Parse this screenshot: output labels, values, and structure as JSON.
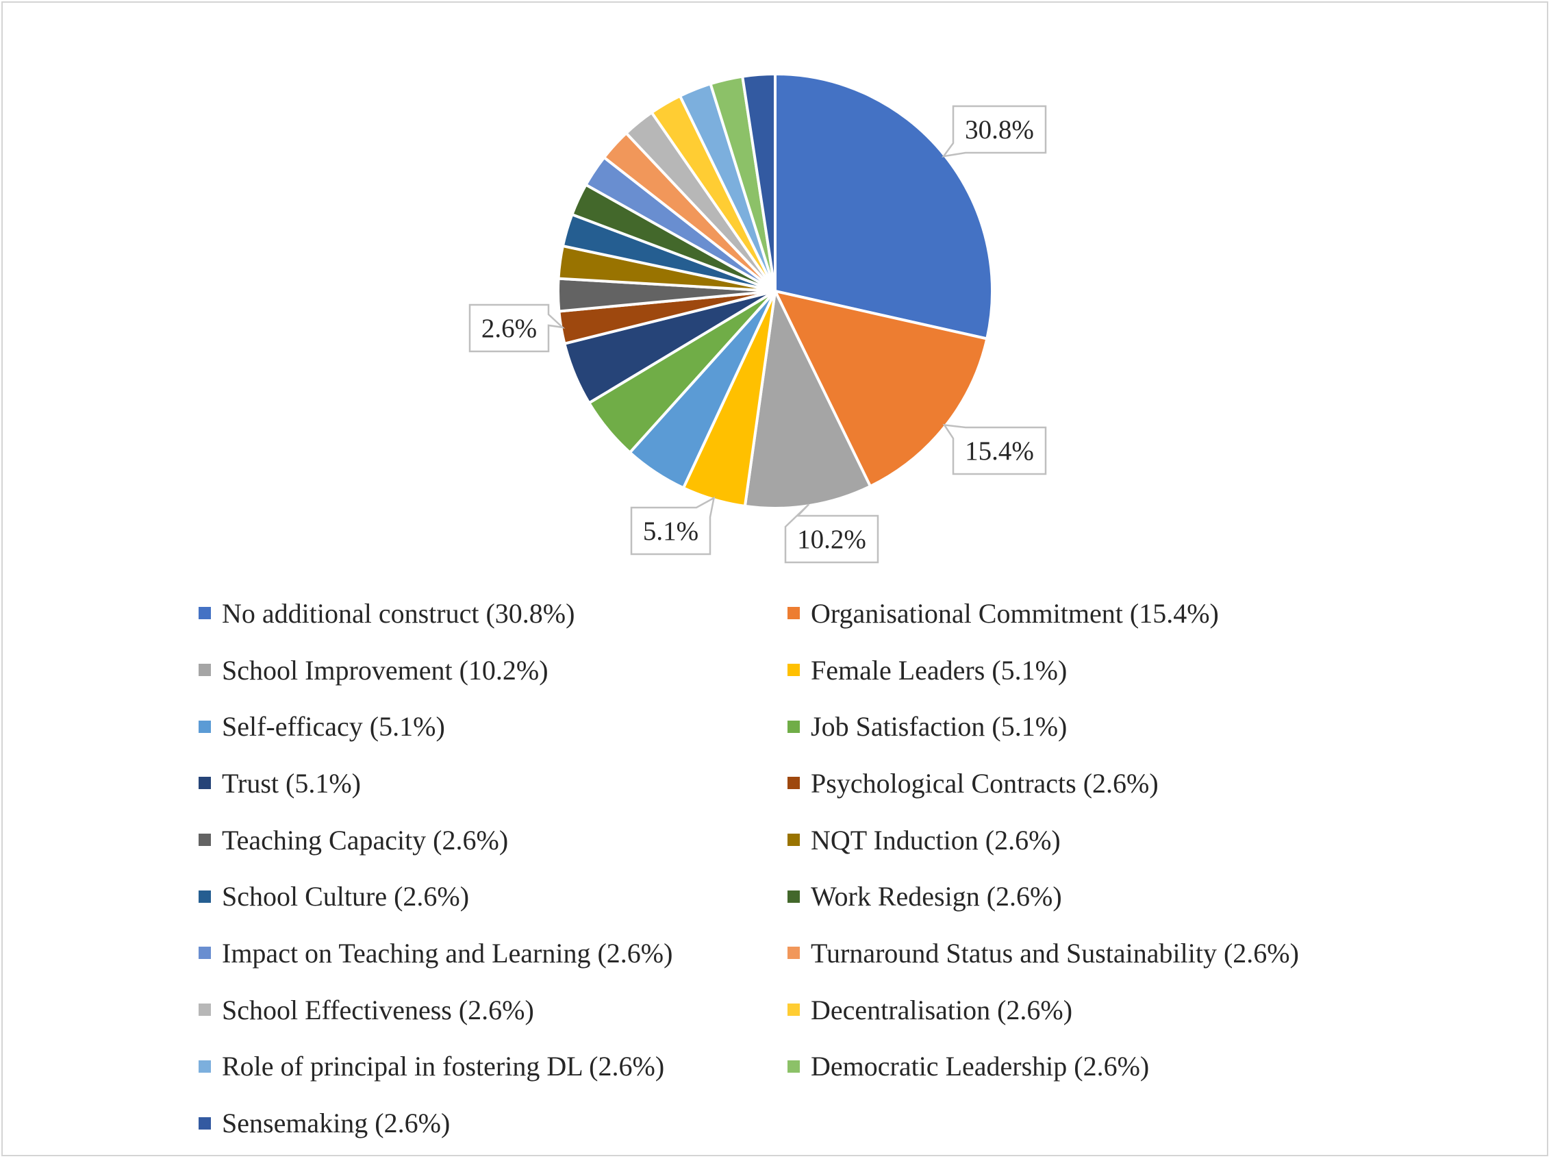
{
  "chart_data": {
    "type": "pie",
    "title": "",
    "slices": [
      {
        "label": "No additional construct",
        "value": 30.8,
        "legend": "No additional construct (30.8%)",
        "color": "#4472C4"
      },
      {
        "label": "Organisational Commitment",
        "value": 15.4,
        "legend": "Organisational Commitment (15.4%)",
        "color": "#ED7D31"
      },
      {
        "label": "School Improvement",
        "value": 10.2,
        "legend": "School Improvement (10.2%)",
        "color": "#A5A5A5"
      },
      {
        "label": "Female Leaders",
        "value": 5.1,
        "legend": "Female Leaders (5.1%)",
        "color": "#FFC000"
      },
      {
        "label": "Self-efficacy",
        "value": 5.1,
        "legend": "Self-efficacy (5.1%)",
        "color": "#5B9BD5"
      },
      {
        "label": "Job Satisfaction",
        "value": 5.1,
        "legend": "Job Satisfaction (5.1%)",
        "color": "#70AD47"
      },
      {
        "label": "Trust",
        "value": 5.1,
        "legend": "Trust (5.1%)",
        "color": "#264478"
      },
      {
        "label": "Psychological Contracts",
        "value": 2.6,
        "legend": "Psychological Contracts (2.6%)",
        "color": "#9E480E"
      },
      {
        "label": "Teaching Capacity",
        "value": 2.6,
        "legend": "Teaching Capacity (2.6%)",
        "color": "#636363"
      },
      {
        "label": "NQT Induction",
        "value": 2.6,
        "legend": "NQT Induction (2.6%)",
        "color": "#997300"
      },
      {
        "label": "School Culture",
        "value": 2.6,
        "legend": "School Culture (2.6%)",
        "color": "#255E91"
      },
      {
        "label": "Work Redesign",
        "value": 2.6,
        "legend": "Work Redesign (2.6%)",
        "color": "#43682B"
      },
      {
        "label": "Impact on Teaching and Learning",
        "value": 2.6,
        "legend": "Impact on Teaching and Learning (2.6%)",
        "color": "#698ED0"
      },
      {
        "label": "Turnaround Status and Sustainability",
        "value": 2.6,
        "legend": "Turnaround Status and Sustainability (2.6%)",
        "color": "#F1975A"
      },
      {
        "label": "School Effectiveness",
        "value": 2.6,
        "legend": "School Effectiveness (2.6%)",
        "color": "#B7B7B7"
      },
      {
        "label": "Decentralisation",
        "value": 2.6,
        "legend": "Decentralisation (2.6%)",
        "color": "#FFCD33"
      },
      {
        "label": "Role of principal in fostering DL",
        "value": 2.6,
        "legend": "Role of principal in fostering DL (2.6%)",
        "color": "#7CAFDD"
      },
      {
        "label": "Democratic Leadership",
        "value": 2.6,
        "legend": "Democratic Leadership (2.6%)",
        "color": "#8CC168"
      },
      {
        "label": "Sensemaking",
        "value": 2.6,
        "legend": "Sensemaking (2.6%)",
        "color": "#335AA1"
      }
    ],
    "data_labels": [
      {
        "slice": 0,
        "text": "30.8%"
      },
      {
        "slice": 1,
        "text": "15.4%"
      },
      {
        "slice": 2,
        "text": "10.2%"
      },
      {
        "slice": 3,
        "text": "5.1%"
      },
      {
        "slice": 7,
        "text": "2.6%"
      }
    ],
    "legend_position": "bottom"
  }
}
